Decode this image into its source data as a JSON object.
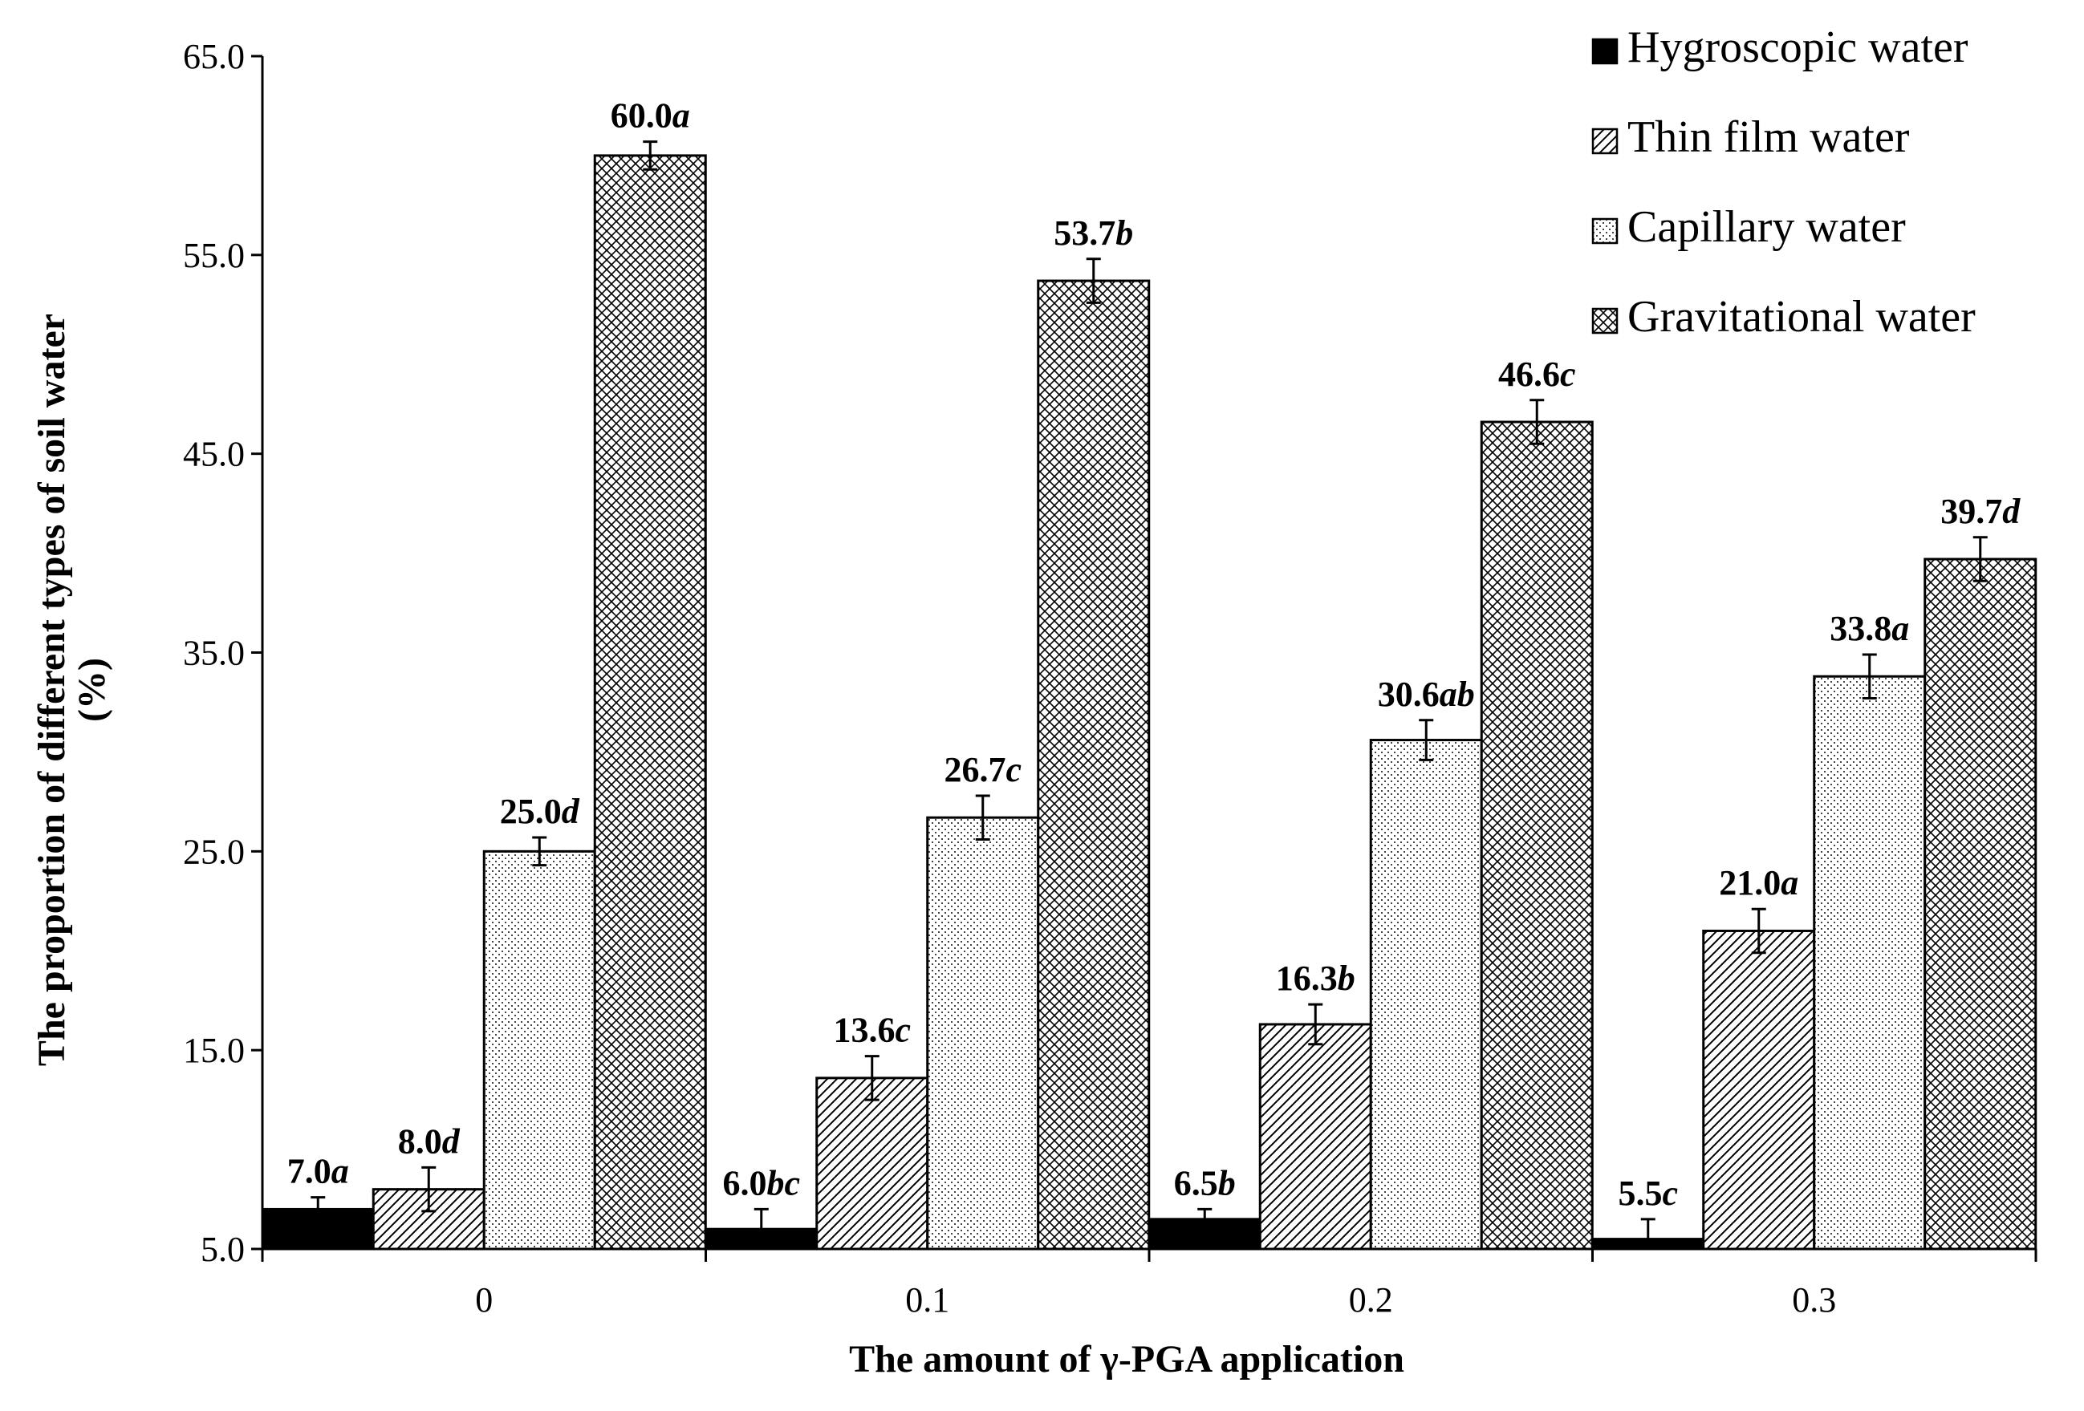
{
  "chart_data": {
    "type": "bar",
    "title": "",
    "xlabel": "The amount of γ-PGA application",
    "ylabel_line1": "The proportion of different types of soil water",
    "ylabel_line2": "(%)",
    "categories": [
      "0",
      "0.1",
      "0.2",
      "0.3"
    ],
    "ylim": [
      5.0,
      65.0
    ],
    "yticks": [
      "5.0",
      "15.0",
      "25.0",
      "35.0",
      "45.0",
      "55.0",
      "65.0"
    ],
    "grid": false,
    "legend_position": "top-right",
    "series": [
      {
        "name": "Hygroscopic water",
        "pattern": "solid",
        "color": "#000000",
        "values": [
          7.0,
          6.0,
          6.5,
          5.5
        ],
        "errors": [
          0.6,
          1.0,
          0.5,
          1.0
        ],
        "numbers": [
          "7.0",
          "6.0",
          "6.5",
          "5.5"
        ],
        "letters": [
          "a",
          "bc",
          "b",
          "c"
        ]
      },
      {
        "name": "Thin film water",
        "pattern": "hatch",
        "color": "#000000",
        "values": [
          8.0,
          13.6,
          16.3,
          21.0
        ],
        "errors": [
          1.1,
          1.1,
          1.0,
          1.1
        ],
        "numbers": [
          "8.0",
          "13.6",
          "16.3",
          "21.0"
        ],
        "letters": [
          "d",
          "c",
          "b",
          "a"
        ]
      },
      {
        "name": "Capillary water",
        "pattern": "dots",
        "color": "#000000",
        "values": [
          25.0,
          26.7,
          30.6,
          33.8
        ],
        "errors": [
          0.7,
          1.1,
          1.0,
          1.1
        ],
        "numbers": [
          "25.0",
          "26.7",
          "30.6",
          "33.8"
        ],
        "letters": [
          "d",
          "c",
          "ab",
          "a"
        ]
      },
      {
        "name": "Gravitational water",
        "pattern": "crosshatch",
        "color": "#000000",
        "values": [
          60.0,
          53.7,
          46.6,
          39.7
        ],
        "errors": [
          0.7,
          1.1,
          1.1,
          1.1
        ],
        "numbers": [
          "60.0",
          "53.7",
          "46.6",
          "39.7"
        ],
        "letters": [
          "a",
          "b",
          "c",
          "d"
        ]
      }
    ]
  }
}
